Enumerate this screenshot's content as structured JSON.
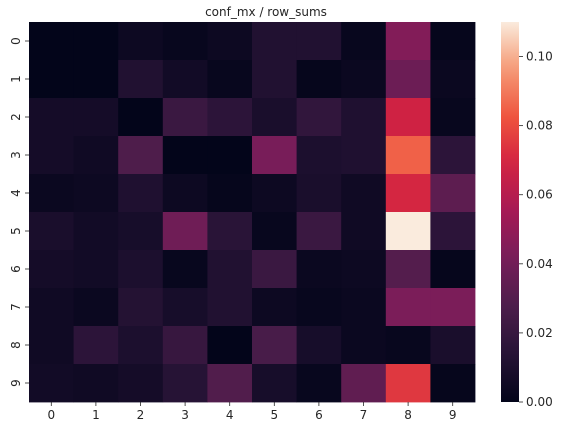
{
  "chart_data": {
    "type": "heatmap",
    "title": "conf_mx / row_sums",
    "xlabel": "",
    "ylabel": "",
    "x_categories": [
      "0",
      "1",
      "2",
      "3",
      "4",
      "5",
      "6",
      "7",
      "8",
      "9"
    ],
    "y_categories": [
      "0",
      "1",
      "2",
      "3",
      "4",
      "5",
      "6",
      "7",
      "8",
      "9"
    ],
    "values": [
      [
        0.0,
        0.0,
        0.004,
        0.002,
        0.004,
        0.012,
        0.012,
        0.002,
        0.045,
        0.001
      ],
      [
        0.0,
        0.0,
        0.012,
        0.006,
        0.002,
        0.012,
        0.001,
        0.003,
        0.038,
        0.003
      ],
      [
        0.007,
        0.007,
        0.0,
        0.021,
        0.016,
        0.009,
        0.018,
        0.011,
        0.068,
        0.002
      ],
      [
        0.007,
        0.005,
        0.028,
        0.0,
        0.0,
        0.042,
        0.01,
        0.011,
        0.085,
        0.016
      ],
      [
        0.003,
        0.004,
        0.011,
        0.004,
        0.001,
        0.004,
        0.009,
        0.005,
        0.07,
        0.033
      ],
      [
        0.009,
        0.006,
        0.008,
        0.039,
        0.015,
        0.002,
        0.021,
        0.005,
        0.11,
        0.016
      ],
      [
        0.007,
        0.006,
        0.01,
        0.002,
        0.012,
        0.021,
        0.003,
        0.004,
        0.03,
        0.001
      ],
      [
        0.005,
        0.003,
        0.013,
        0.008,
        0.012,
        0.004,
        0.002,
        0.003,
        0.043,
        0.043
      ],
      [
        0.005,
        0.016,
        0.01,
        0.02,
        0.0,
        0.026,
        0.008,
        0.003,
        0.002,
        0.009
      ],
      [
        0.006,
        0.005,
        0.007,
        0.014,
        0.029,
        0.008,
        0.002,
        0.034,
        0.075,
        0.001
      ]
    ],
    "colormap": "rocket",
    "vmin": 0.0,
    "vmax": 0.11,
    "colorbar": {
      "ticks": [
        0.0,
        0.02,
        0.04,
        0.06,
        0.08,
        0.1
      ],
      "tick_labels": [
        "0.00",
        "0.02",
        "0.04",
        "0.06",
        "0.08",
        "0.10"
      ]
    }
  }
}
